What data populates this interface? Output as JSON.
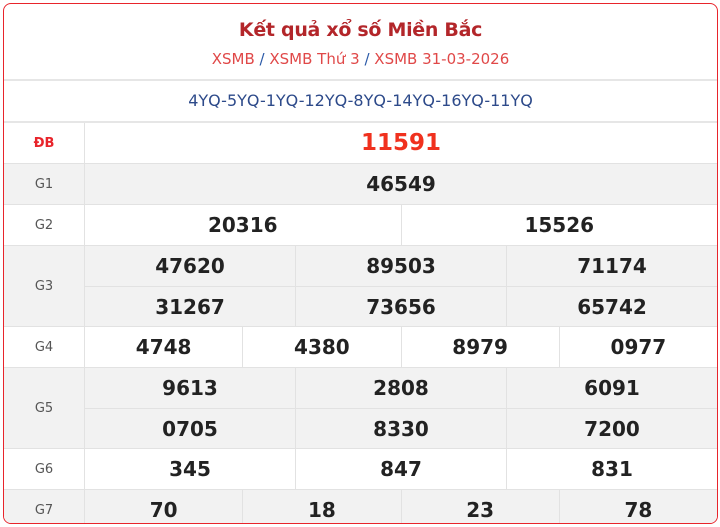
{
  "header": {
    "title": "Kết quả xổ số Miền Bắc",
    "breadcrumbs": [
      "XSMB",
      "XSMB Thứ 3",
      "XSMB 31-03-2026"
    ],
    "separator": "/"
  },
  "codes": "4YQ-5YQ-1YQ-12YQ-8YQ-14YQ-16YQ-11YQ",
  "prizes": [
    {
      "label": "ĐB",
      "rows": [
        [
          "11591"
        ]
      ]
    },
    {
      "label": "G1",
      "rows": [
        [
          "46549"
        ]
      ]
    },
    {
      "label": "G2",
      "rows": [
        [
          "20316",
          "15526"
        ]
      ]
    },
    {
      "label": "G3",
      "rows": [
        [
          "47620",
          "89503",
          "71174"
        ],
        [
          "31267",
          "73656",
          "65742"
        ]
      ]
    },
    {
      "label": "G4",
      "rows": [
        [
          "4748",
          "4380",
          "8979",
          "0977"
        ]
      ]
    },
    {
      "label": "G5",
      "rows": [
        [
          "9613",
          "2808",
          "6091"
        ],
        [
          "0705",
          "8330",
          "7200"
        ]
      ]
    },
    {
      "label": "G6",
      "rows": [
        [
          "345",
          "847",
          "831"
        ]
      ]
    },
    {
      "label": "G7",
      "rows": [
        [
          "70",
          "18",
          "23",
          "78"
        ]
      ]
    }
  ],
  "colors": {
    "border": "#e8242b",
    "title": "#b3262a",
    "special": "#f0311e",
    "codes": "#2d4a8a"
  }
}
